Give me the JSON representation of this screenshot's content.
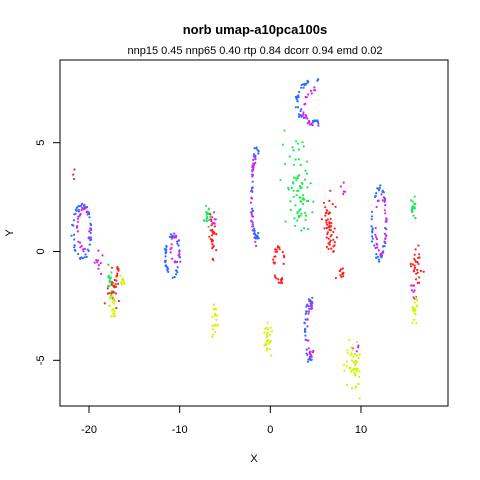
{
  "chart_data": {
    "type": "scatter",
    "title": "norb umap-a10pca100s",
    "subtitle": "nnp15 0.45 nnp65 0.40 rtp 0.84 dcorr 0.94 emd 0.02",
    "xlabel": "X",
    "ylabel": "Y",
    "xlim": [
      -23.2,
      19.6
    ],
    "ylim": [
      -7.1,
      8.8
    ],
    "xticks": [
      -20,
      -10,
      0,
      10
    ],
    "xtick_labels": [
      "-20",
      "-10",
      "0",
      "10"
    ],
    "yticks": [
      -5,
      0,
      5
    ],
    "ytick_labels": [
      "-5",
      "0",
      "5"
    ],
    "grid": false,
    "legend": "none",
    "series": [
      {
        "color": "#2e6bff",
        "clusters": [
          {
            "shape": "ring",
            "cx": -20.8,
            "cy": 0.9,
            "rx": 1.0,
            "ry": 1.2,
            "n": 55
          },
          {
            "shape": "ring",
            "cx": -10.8,
            "cy": -0.2,
            "rx": 0.8,
            "ry": 0.9,
            "n": 45
          },
          {
            "shape": "arc",
            "cx": -1.5,
            "cy": 2.6,
            "rx": 0.5,
            "ry": 2.0,
            "n": 45
          },
          {
            "shape": "arc",
            "cx": 4.6,
            "cy": 6.9,
            "rx": 1.6,
            "ry": 1.0,
            "n": 45
          },
          {
            "shape": "arc",
            "cx": 4.4,
            "cy": -3.7,
            "rx": 0.6,
            "ry": 1.4,
            "n": 40
          },
          {
            "shape": "ring",
            "cx": 12.0,
            "cy": 1.3,
            "rx": 0.8,
            "ry": 1.6,
            "n": 50
          }
        ]
      },
      {
        "color": "#d61ef5",
        "clusters": [
          {
            "shape": "ring",
            "cx": -20.6,
            "cy": 1.0,
            "rx": 0.7,
            "ry": 0.9,
            "n": 30
          },
          {
            "shape": "blob",
            "cx": -19.0,
            "cy": -0.5,
            "rx": 0.5,
            "ry": 0.5,
            "n": 10
          },
          {
            "shape": "ring",
            "cx": -10.5,
            "cy": 0.1,
            "rx": 0.5,
            "ry": 0.6,
            "n": 20
          },
          {
            "shape": "blob",
            "cx": -6.2,
            "cy": 1.6,
            "rx": 0.3,
            "ry": 0.5,
            "n": 8
          },
          {
            "shape": "arc",
            "cx": -1.7,
            "cy": 2.4,
            "rx": 0.4,
            "ry": 1.8,
            "n": 30
          },
          {
            "shape": "arc",
            "cx": 4.9,
            "cy": 6.6,
            "rx": 1.2,
            "ry": 0.8,
            "n": 25
          },
          {
            "shape": "arc",
            "cx": 4.6,
            "cy": -3.6,
            "rx": 0.5,
            "ry": 1.2,
            "n": 25
          },
          {
            "shape": "ring",
            "cx": 12.2,
            "cy": 1.2,
            "rx": 0.6,
            "ry": 1.3,
            "n": 30
          },
          {
            "shape": "blob",
            "cx": 15.8,
            "cy": -2.0,
            "rx": 0.3,
            "ry": 0.6,
            "n": 8
          },
          {
            "shape": "blob",
            "cx": 9.4,
            "cy": -4.4,
            "rx": 0.3,
            "ry": 0.3,
            "n": 4
          },
          {
            "shape": "blob",
            "cx": 8.0,
            "cy": 3.0,
            "rx": 0.3,
            "ry": 0.4,
            "n": 5
          }
        ]
      },
      {
        "color": "#1ee85a",
        "clusters": [
          {
            "shape": "blob",
            "cx": -17.6,
            "cy": -1.3,
            "rx": 0.4,
            "ry": 0.6,
            "n": 25
          },
          {
            "shape": "blob",
            "cx": -6.9,
            "cy": 1.7,
            "rx": 0.4,
            "ry": 0.5,
            "n": 20
          },
          {
            "shape": "blob",
            "cx": 3.0,
            "cy": 3.1,
            "rx": 1.3,
            "ry": 2.1,
            "n": 80
          },
          {
            "shape": "blob",
            "cx": 15.9,
            "cy": 1.9,
            "rx": 0.4,
            "ry": 0.5,
            "n": 20
          }
        ]
      },
      {
        "color": "#ff2020",
        "clusters": [
          {
            "shape": "blob",
            "cx": -17.4,
            "cy": -1.8,
            "rx": 0.6,
            "ry": 0.7,
            "n": 25
          },
          {
            "shape": "blob",
            "cx": -16.8,
            "cy": -0.9,
            "rx": 0.3,
            "ry": 0.2,
            "n": 8
          },
          {
            "shape": "blob",
            "cx": -6.4,
            "cy": 0.6,
            "rx": 0.4,
            "ry": 0.8,
            "n": 30
          },
          {
            "shape": "ring",
            "cx": 1.0,
            "cy": -0.6,
            "rx": 0.6,
            "ry": 0.8,
            "n": 30
          },
          {
            "shape": "blob",
            "cx": 6.5,
            "cy": 1.1,
            "rx": 0.7,
            "ry": 1.3,
            "n": 55
          },
          {
            "shape": "blob",
            "cx": 7.8,
            "cy": -1.0,
            "rx": 0.6,
            "ry": 0.3,
            "n": 12
          },
          {
            "shape": "blob",
            "cx": 16.1,
            "cy": -0.6,
            "rx": 0.5,
            "ry": 0.9,
            "n": 30
          },
          {
            "shape": "blob",
            "cx": -21.6,
            "cy": 3.6,
            "rx": 0.1,
            "ry": 0.2,
            "n": 3
          }
        ]
      },
      {
        "color": "#d2f500",
        "clusters": [
          {
            "shape": "blob",
            "cx": -17.4,
            "cy": -2.6,
            "rx": 0.4,
            "ry": 0.6,
            "n": 20
          },
          {
            "shape": "blob",
            "cx": -16.3,
            "cy": -1.4,
            "rx": 0.3,
            "ry": 0.4,
            "n": 10
          },
          {
            "shape": "blob",
            "cx": -6.1,
            "cy": -3.2,
            "rx": 0.3,
            "ry": 0.6,
            "n": 20
          },
          {
            "shape": "blob",
            "cx": -0.3,
            "cy": -4.0,
            "rx": 0.4,
            "ry": 0.7,
            "n": 25
          },
          {
            "shape": "blob",
            "cx": 9.2,
            "cy": -5.2,
            "rx": 0.8,
            "ry": 1.0,
            "n": 50
          },
          {
            "shape": "blob",
            "cx": 15.9,
            "cy": -2.7,
            "rx": 0.3,
            "ry": 0.6,
            "n": 20
          }
        ]
      }
    ]
  }
}
